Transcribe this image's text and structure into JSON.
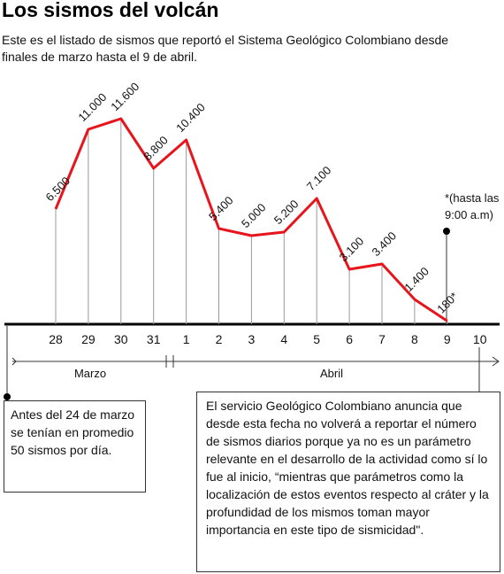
{
  "chart_data": {
    "type": "line",
    "title": "Los sismos del volcán",
    "subtitle": "Este es el listado de sismos que reportó el Sistema Geológico Colombiano desde finales de marzo hasta el 9 de abril.",
    "categories": [
      "28",
      "29",
      "30",
      "31",
      "1",
      "2",
      "3",
      "4",
      "5",
      "6",
      "7",
      "8",
      "9",
      "10"
    ],
    "series": [
      {
        "name": null,
        "color": "#e8141c",
        "values": [
          6500,
          11000,
          11600,
          8800,
          10400,
          5400,
          5000,
          5200,
          7100,
          3100,
          3400,
          1400,
          180,
          null
        ],
        "value_labels": [
          "6.500",
          "11.000",
          "11.600",
          "8.800",
          "10.400",
          "5.400",
          "5.000",
          "5.200",
          "7.100",
          "3.100",
          "3.400",
          "1.400",
          "180*",
          null
        ]
      }
    ],
    "months": [
      "Marzo",
      "Abril"
    ],
    "annotation": [
      "*(hasta las",
      "9:00 a.m)"
    ],
    "notes": [
      "Antes del 24 de marzo se tenían en promedio 50 sismos por día.",
      "El servicio Geológico Colombiano anuncia que desde esta fecha no volverá a reportar el número de sismos diarios porque ya no es un parámetro relevante en el desarrollo de la actividad como sí lo fue al inicio, “mientras que parámetros como la localización de estos eventos respecto al cráter y la profundidad de los mismos toman mayor importancia en este tipo de sismicidad\"."
    ]
  }
}
